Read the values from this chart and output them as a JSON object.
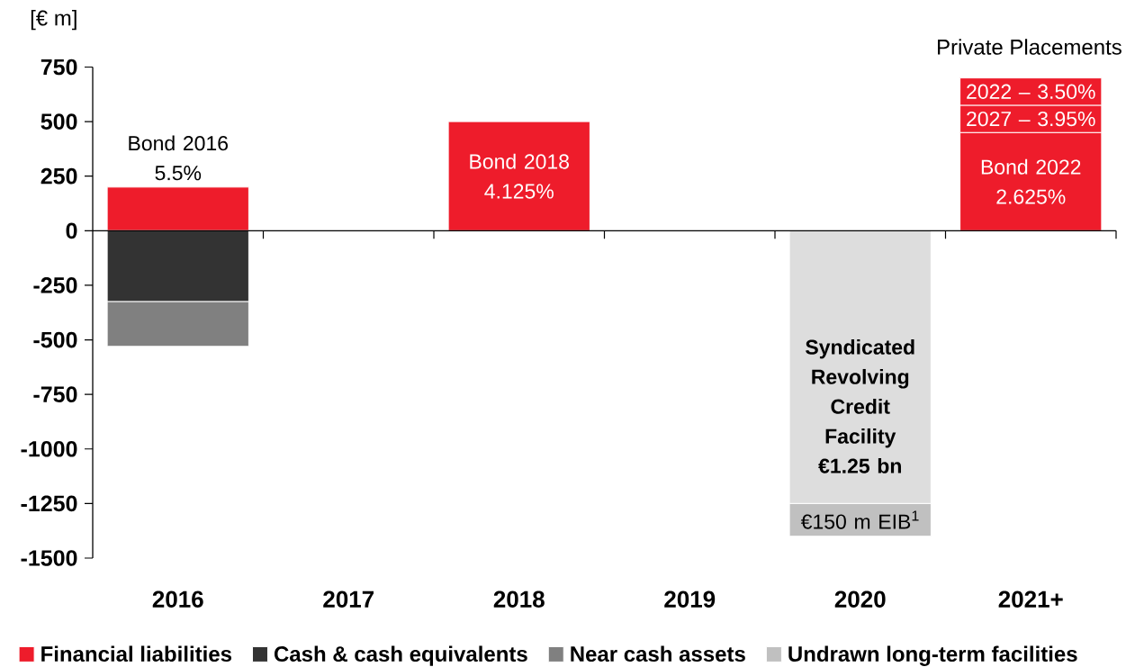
{
  "chart_data": {
    "type": "bar",
    "stacked": true,
    "ylabel": "[€ m]",
    "categories": [
      "2016",
      "2017",
      "2018",
      "2019",
      "2020",
      "2021+"
    ],
    "series": [
      {
        "name": "Financial liabilities",
        "color": "#ee1c2b",
        "values": [
          200,
          null,
          500,
          null,
          null,
          450
        ]
      },
      {
        "color": "#ee1c2b",
        "values": [
          null,
          null,
          null,
          null,
          null,
          125
        ]
      },
      {
        "color": "#ee1c2b",
        "values": [
          null,
          null,
          null,
          null,
          null,
          125
        ]
      },
      {
        "name": "Cash & cash equivalents",
        "color": "#333333",
        "values": [
          -325,
          null,
          null,
          null,
          null,
          null
        ]
      },
      {
        "name": "Near cash assets",
        "color": "#808080",
        "values": [
          -205,
          null,
          null,
          null,
          null,
          null
        ]
      },
      {
        "color": "#dddddd",
        "values": [
          null,
          null,
          null,
          null,
          -1250,
          null
        ]
      },
      {
        "name": "Undrawn long-term facilities",
        "color": "#c0c0c0",
        "values": [
          null,
          null,
          null,
          null,
          -150,
          null
        ]
      }
    ],
    "ylim": [
      -1500,
      750
    ],
    "yticks": [
      -1500,
      -1250,
      -1000,
      -750,
      -500,
      -250,
      0,
      250,
      500,
      750
    ],
    "legend": "bottom",
    "annotations": [
      {
        "text": "Bond 2016 5.5%",
        "x": "2016",
        "y": 200
      },
      {
        "text": "Bond 2018 4.125%",
        "x": "2018",
        "y": 500
      },
      {
        "text": "**Syndicated Revolving Credit Facility €1.25 bn**",
        "x": "2020",
        "y": -1250
      },
      {
        "text": "€150 m EIB$^{1}$",
        "x": "2020",
        "y": -1400
      },
      {
        "text": "Bond 2022 2.625%",
        "x": "2021+",
        "y": 450
      },
      {
        "text": "2027 – 3.95%",
        "x": "2021+",
        "y": 575
      },
      {
        "text": "2022 – 3.50%",
        "x": "2021+",
        "y": 700
      },
      "Private Placements"
    ]
  }
}
